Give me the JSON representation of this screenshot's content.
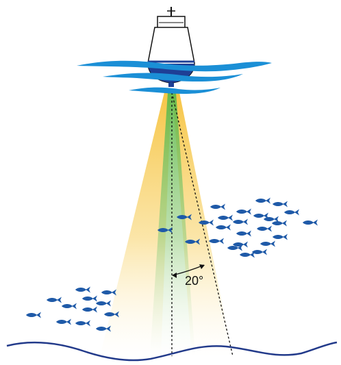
{
  "diagram": {
    "beam_angle_label": "20°",
    "colors": {
      "water": "#1b8fd6",
      "hull": "#1e3f96",
      "fish": "#1f5aa8",
      "seabed": "#223a8a",
      "beam_yellow": "#f6c23c",
      "beam_green": "#5fb84a",
      "outline": "#111111"
    }
  }
}
